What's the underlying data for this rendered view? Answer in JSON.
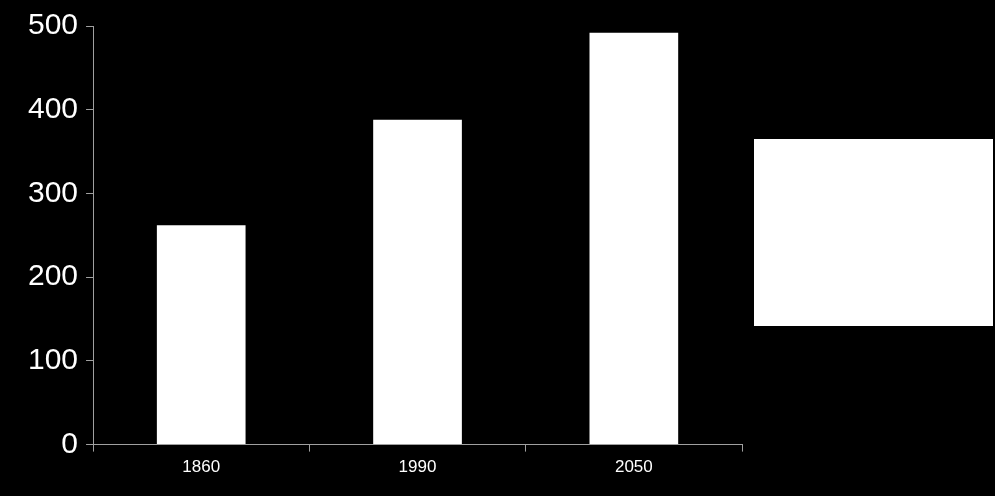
{
  "chart_data": {
    "type": "bar",
    "categories": [
      "1860",
      "1990",
      "2050"
    ],
    "values": [
      262,
      388,
      492
    ],
    "color": "#ffffff",
    "ylim": [
      0,
      500
    ],
    "yticks": [
      0,
      100,
      200,
      300,
      400,
      500
    ],
    "grid": false
  }
}
